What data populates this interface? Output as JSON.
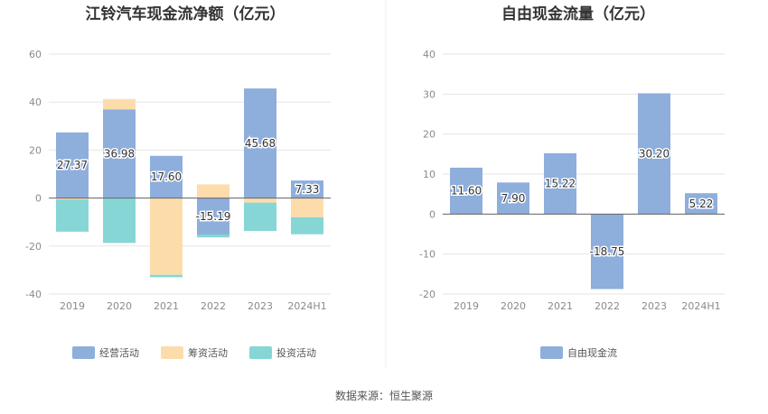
{
  "source_note": "数据来源：恒生聚源",
  "chart_data": [
    {
      "type": "bar",
      "stacked": true,
      "title": "江铃汽车现金流净额（亿元）",
      "categories": [
        "2019",
        "2020",
        "2021",
        "2022",
        "2023",
        "2024H1"
      ],
      "ylim": [
        -40,
        60
      ],
      "yticks": [
        -40,
        -20,
        0,
        20,
        40,
        60
      ],
      "grid": true,
      "legend_position": "bottom",
      "series": [
        {
          "name": "经营活动",
          "color": "#8eaedc",
          "values": [
            27.37,
            36.98,
            17.6,
            -15.19,
            45.68,
            7.33
          ],
          "labels": [
            "27.37",
            "36.98",
            "17.60",
            "-15.19",
            "45.68",
            "7.33"
          ]
        },
        {
          "name": "筹资活动",
          "color": "#fddcac",
          "values": [
            -0.6,
            4.3,
            -32.0,
            5.7,
            -1.9,
            -8.0
          ]
        },
        {
          "name": "投资活动",
          "color": "#86d6d6",
          "values": [
            -13.4,
            -18.7,
            -1.0,
            -1.2,
            -11.8,
            -7.1
          ]
        }
      ]
    },
    {
      "type": "bar",
      "title": "自由现金流量（亿元）",
      "categories": [
        "2019",
        "2020",
        "2021",
        "2022",
        "2023",
        "2024H1"
      ],
      "ylim": [
        -20,
        40
      ],
      "yticks": [
        -20,
        -10,
        0,
        10,
        20,
        30,
        40
      ],
      "grid": true,
      "legend_position": "bottom",
      "series": [
        {
          "name": "自由现金流",
          "color": "#8eaedc",
          "values": [
            11.6,
            7.9,
            15.22,
            -18.75,
            30.2,
            5.22
          ],
          "labels": [
            "11.60",
            "7.90",
            "15.22",
            "-18.75",
            "30.20",
            "5.22"
          ]
        }
      ]
    }
  ]
}
